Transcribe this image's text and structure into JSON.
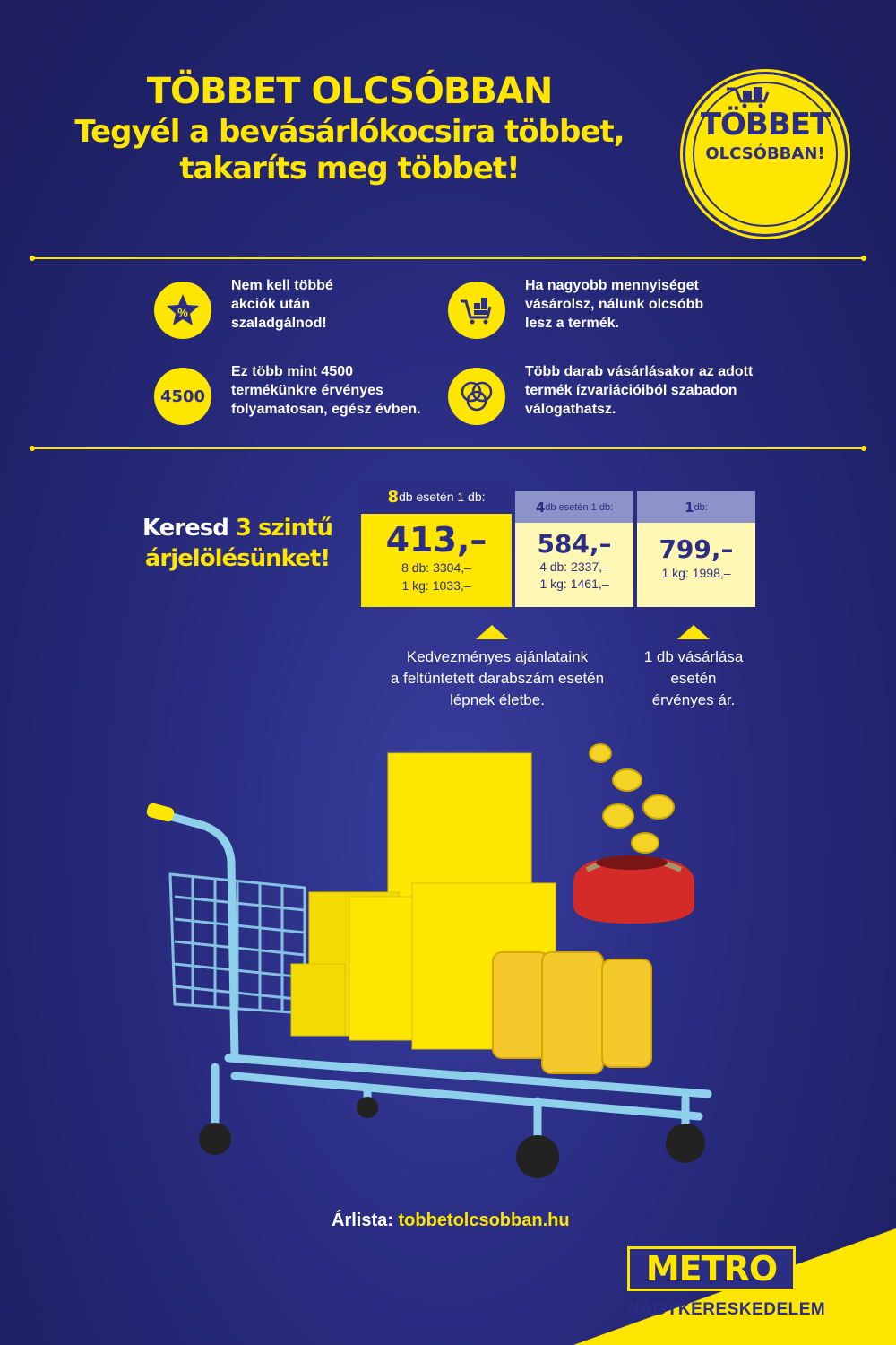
{
  "header": {
    "line1": "TÖBBET OLCSÓBBAN",
    "line2": "Tegyél a bevásárlókocsira többet,",
    "line3": "takaríts meg többet!"
  },
  "badge": {
    "line1": "TÖBBET",
    "line2": "OLCSÓBBAN!",
    "icon": "shopping-cart-icon"
  },
  "features": [
    {
      "icon": "star-percent-icon",
      "icon_text": "%",
      "text": "Nem kell többé\nakciók után\nszaladgálnod!"
    },
    {
      "icon": "cart-boxes-icon",
      "icon_text": "",
      "text": "Ha nagyobb mennyiséget\nvásárolsz, nálunk olcsóbb\nlesz a termék."
    },
    {
      "icon": "4500-icon",
      "icon_text": "4500",
      "text": "Ez több mint 4500\ntermékünkre érvényes\nfolyamatosan, egész évben."
    },
    {
      "icon": "overlapping-circles-icon",
      "icon_text": "",
      "text": "Több darab vásárlásakor az adott\ntermék ízvariációiból szabadon\nválogathatsz."
    }
  ],
  "keresd": {
    "pre": "Keresd ",
    "num": "3",
    "mid": " szintű",
    "line2": "árjelölésünket!"
  },
  "prices": [
    {
      "head_num": "8",
      "head_text": " db esetén 1 db:",
      "price": "413,–",
      "sub1": "8 db: 3304,–",
      "sub2": "1 kg: 1033,–",
      "head_bg": "#2b2e84",
      "body_bg": "#ffe600"
    },
    {
      "head_num": "4",
      "head_text": " db esetén 1 db:",
      "price": "584,–",
      "sub1": "4 db: 2337,–",
      "sub2": "1 kg: 1461,–",
      "head_bg": "#8b93c9",
      "body_bg": "#fff7b3"
    },
    {
      "head_num": "1",
      "head_text": " db:",
      "price": "799,–",
      "sub1": "1 kg: 1998,–",
      "sub2": "",
      "head_bg": "#8b93c9",
      "body_bg": "#fff7b3"
    }
  ],
  "notes": [
    "Kedvezményes ajánlataink\na feltüntetett darabszám esetén\nlépnek életbe.",
    "1 db vásárlása\nesetén\nérvényes ár."
  ],
  "arlista": {
    "label": "Árlista: ",
    "url": "tobbetolcsobban.hu"
  },
  "brand": {
    "logo": "METRO",
    "sub": "NAGYKERESKEDELEM"
  },
  "colors": {
    "navy": "#2b2e84",
    "yellow": "#ffe600",
    "cart": "#8ed0ec"
  }
}
